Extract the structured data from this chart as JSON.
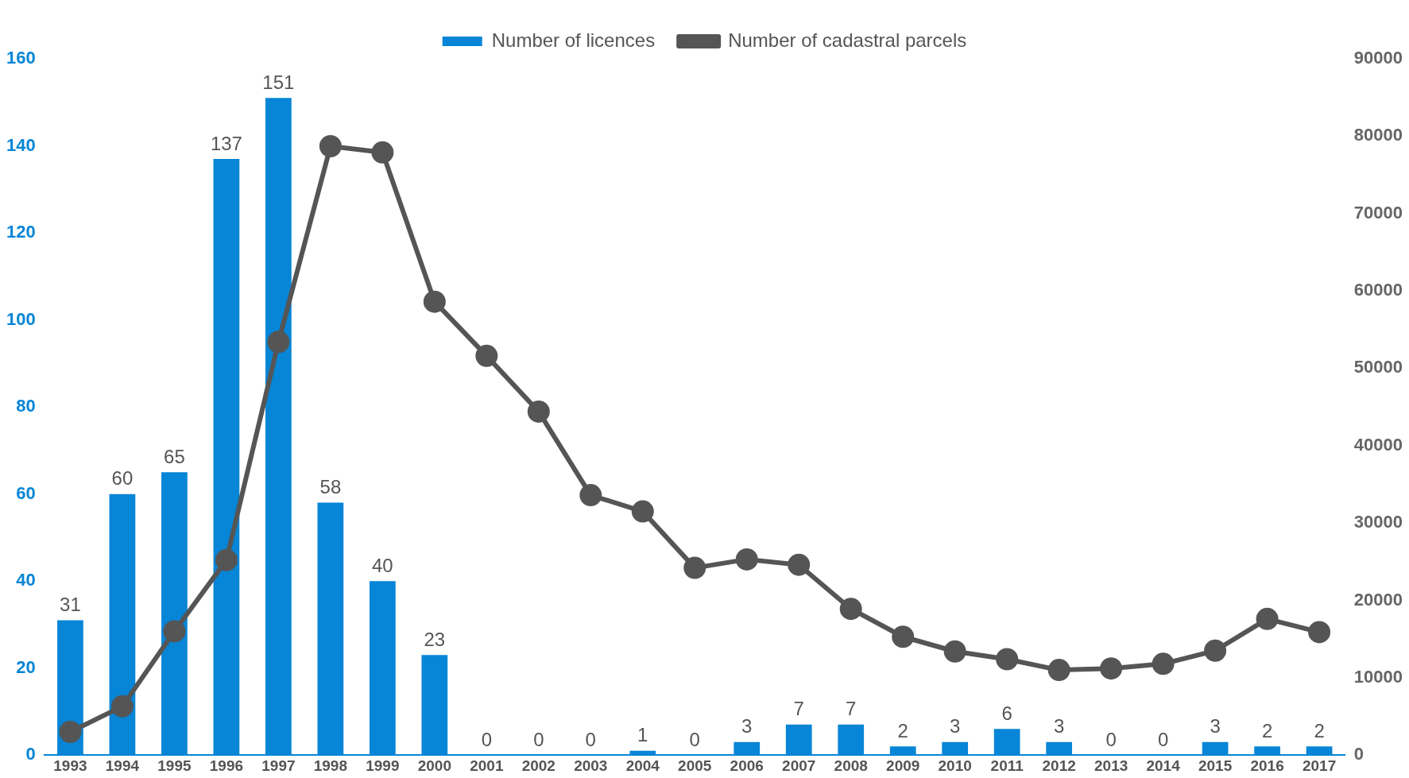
{
  "chart_data": {
    "type": "bar",
    "categories": [
      "1993",
      "1994",
      "1995",
      "1996",
      "1997",
      "1998",
      "1999",
      "2000",
      "2001",
      "2002",
      "2003",
      "2004",
      "2005",
      "2006",
      "2007",
      "2008",
      "2009",
      "2010",
      "2011",
      "2012",
      "2013",
      "2014",
      "2015",
      "2016",
      "2017"
    ],
    "series": [
      {
        "name": "Number of licences",
        "color": "#0785d6",
        "values": [
          31,
          60,
          65,
          137,
          151,
          58,
          40,
          23,
          0,
          0,
          0,
          1,
          0,
          3,
          7,
          7,
          2,
          3,
          6,
          3,
          0,
          0,
          3,
          2,
          2
        ],
        "value_labels": [
          "31",
          "60",
          "65",
          "137",
          "151",
          "58",
          "40",
          "23",
          "0",
          "0",
          "0",
          "1",
          "0",
          "3",
          "7",
          "7",
          "2",
          "3",
          "6",
          "3",
          "0",
          "0",
          "3",
          "2",
          "2"
        ]
      },
      {
        "name": "Number of cadastral parcels",
        "type": "line",
        "axis": "y2",
        "color": "#555555",
        "values": [
          3000,
          6300,
          16000,
          25200,
          53400,
          78700,
          77900,
          58600,
          51600,
          44400,
          33600,
          31500,
          24200,
          25300,
          24600,
          18900,
          15300,
          13400,
          12400,
          11000,
          11200,
          11800,
          13500,
          17600,
          15900
        ]
      }
    ],
    "ylim": [
      0,
      160
    ],
    "yticks": [
      0,
      20,
      40,
      60,
      80,
      100,
      120,
      140,
      160
    ],
    "y2lim": [
      0,
      90000
    ],
    "y2ticks": [
      0,
      10000,
      20000,
      30000,
      40000,
      50000,
      60000,
      70000,
      80000,
      90000
    ],
    "grid": false,
    "legend": "top",
    "marker": "circle",
    "line_style": "solid"
  }
}
